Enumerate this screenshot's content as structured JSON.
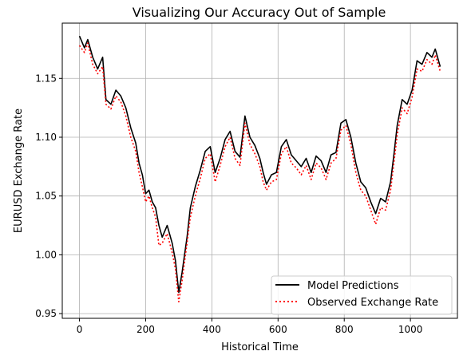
{
  "chart_data": {
    "type": "line",
    "title": "Visualizing Our Accuracy Out of Sample",
    "xlabel": "Historical Time",
    "ylabel": "EURUSD Exchange Rate",
    "xlim": [
      -52,
      1142
    ],
    "ylim": [
      0.946,
      1.197
    ],
    "x_ticks": [
      0,
      200,
      400,
      600,
      800,
      1000
    ],
    "x_tick_labels": [
      "0",
      "200",
      "400",
      "600",
      "800",
      "1000"
    ],
    "y_ticks": [
      0.95,
      1.0,
      1.05,
      1.1,
      1.15
    ],
    "y_tick_labels": [
      "0.95",
      "1.00",
      "1.05",
      "1.10",
      "1.15"
    ],
    "grid": true,
    "legend_position": "lower-right",
    "series": [
      {
        "name": "Model Predictions",
        "color": "#000000",
        "style": "solid",
        "x": [
          0,
          15,
          25,
          40,
          55,
          70,
          80,
          95,
          110,
          125,
          140,
          155,
          170,
          180,
          190,
          200,
          210,
          220,
          230,
          240,
          250,
          265,
          280,
          290,
          300,
          310,
          325,
          335,
          350,
          365,
          380,
          395,
          410,
          425,
          440,
          455,
          470,
          485,
          500,
          515,
          530,
          545,
          555,
          565,
          580,
          595,
          610,
          625,
          640,
          655,
          670,
          685,
          700,
          715,
          730,
          745,
          760,
          775,
          790,
          805,
          820,
          835,
          850,
          865,
          880,
          895,
          910,
          925,
          940,
          950,
          960,
          975,
          990,
          1005,
          1020,
          1035,
          1050,
          1065,
          1075,
          1090
        ],
        "y": [
          1.186,
          1.176,
          1.183,
          1.168,
          1.158,
          1.168,
          1.132,
          1.128,
          1.14,
          1.135,
          1.125,
          1.108,
          1.095,
          1.078,
          1.068,
          1.052,
          1.055,
          1.045,
          1.04,
          1.025,
          1.015,
          1.025,
          1.01,
          0.995,
          0.968,
          0.985,
          1.015,
          1.04,
          1.058,
          1.072,
          1.088,
          1.092,
          1.07,
          1.082,
          1.098,
          1.105,
          1.088,
          1.083,
          1.118,
          1.1,
          1.093,
          1.082,
          1.07,
          1.06,
          1.068,
          1.07,
          1.092,
          1.098,
          1.085,
          1.08,
          1.075,
          1.082,
          1.07,
          1.084,
          1.08,
          1.07,
          1.085,
          1.087,
          1.112,
          1.115,
          1.1,
          1.078,
          1.062,
          1.057,
          1.045,
          1.035,
          1.048,
          1.045,
          1.062,
          1.085,
          1.11,
          1.132,
          1.128,
          1.14,
          1.165,
          1.162,
          1.172,
          1.168,
          1.175,
          1.16
        ]
      },
      {
        "name": "Observed Exchange Rate",
        "color": "#ff0000",
        "style": "dotted",
        "x": [
          0,
          15,
          25,
          40,
          55,
          70,
          80,
          95,
          110,
          125,
          140,
          155,
          170,
          180,
          190,
          200,
          210,
          220,
          230,
          240,
          250,
          265,
          280,
          290,
          300,
          310,
          325,
          335,
          350,
          365,
          380,
          395,
          410,
          425,
          440,
          455,
          470,
          485,
          500,
          515,
          530,
          545,
          555,
          565,
          580,
          595,
          610,
          625,
          640,
          655,
          670,
          685,
          700,
          715,
          730,
          745,
          760,
          775,
          790,
          805,
          820,
          835,
          850,
          865,
          880,
          895,
          910,
          925,
          940,
          950,
          960,
          975,
          990,
          1005,
          1020,
          1035,
          1050,
          1065,
          1075,
          1090
        ],
        "y": [
          1.178,
          1.172,
          1.18,
          1.162,
          1.154,
          1.16,
          1.128,
          1.124,
          1.135,
          1.13,
          1.118,
          1.1,
          1.088,
          1.07,
          1.058,
          1.045,
          1.05,
          1.04,
          1.032,
          1.008,
          1.01,
          1.018,
          1.002,
          0.988,
          0.96,
          0.978,
          1.01,
          1.032,
          1.05,
          1.065,
          1.082,
          1.086,
          1.062,
          1.076,
          1.092,
          1.1,
          1.082,
          1.076,
          1.112,
          1.094,
          1.086,
          1.075,
          1.062,
          1.055,
          1.062,
          1.064,
          1.086,
          1.092,
          1.078,
          1.074,
          1.068,
          1.076,
          1.064,
          1.078,
          1.074,
          1.064,
          1.078,
          1.082,
          1.106,
          1.11,
          1.094,
          1.07,
          1.055,
          1.05,
          1.038,
          1.026,
          1.04,
          1.038,
          1.055,
          1.078,
          1.102,
          1.125,
          1.12,
          1.134,
          1.158,
          1.156,
          1.166,
          1.162,
          1.17,
          1.156
        ]
      }
    ]
  }
}
